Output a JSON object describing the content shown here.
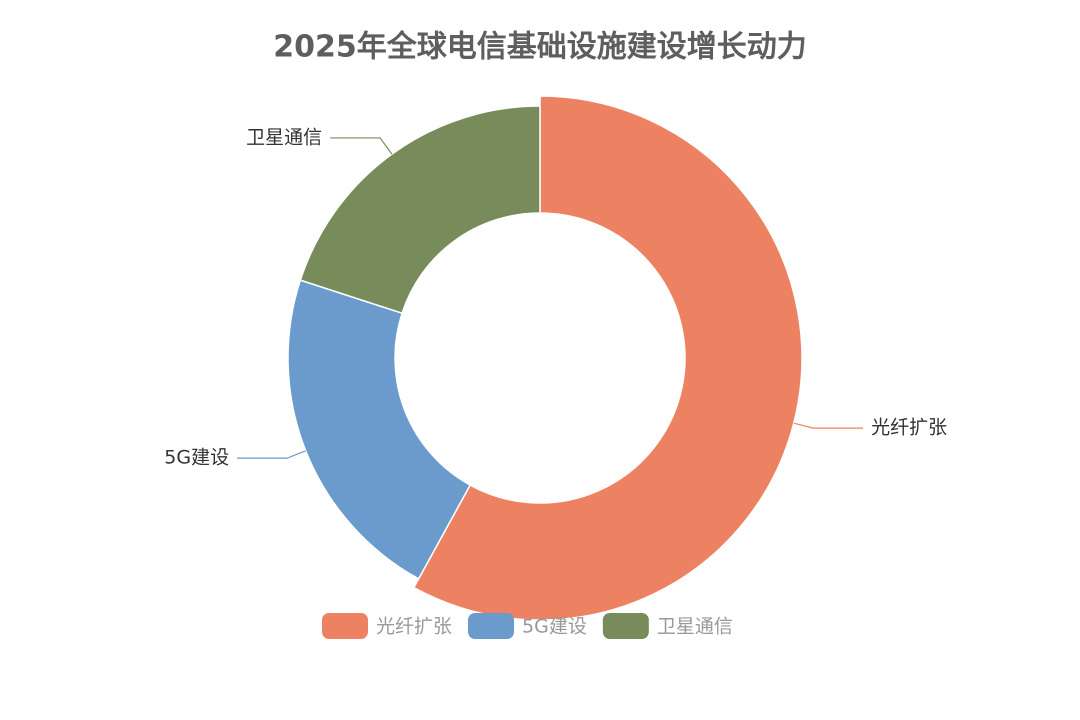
{
  "chart_data": {
    "type": "donut",
    "title": "2025年全球电信基础设施建设增长动力",
    "categories": [
      "光纤扩张",
      "5G建设",
      "卫星通信"
    ],
    "values": [
      58,
      22,
      20
    ],
    "colors": [
      "#ed8262",
      "#6a9bcc",
      "#778c5a"
    ]
  }
}
